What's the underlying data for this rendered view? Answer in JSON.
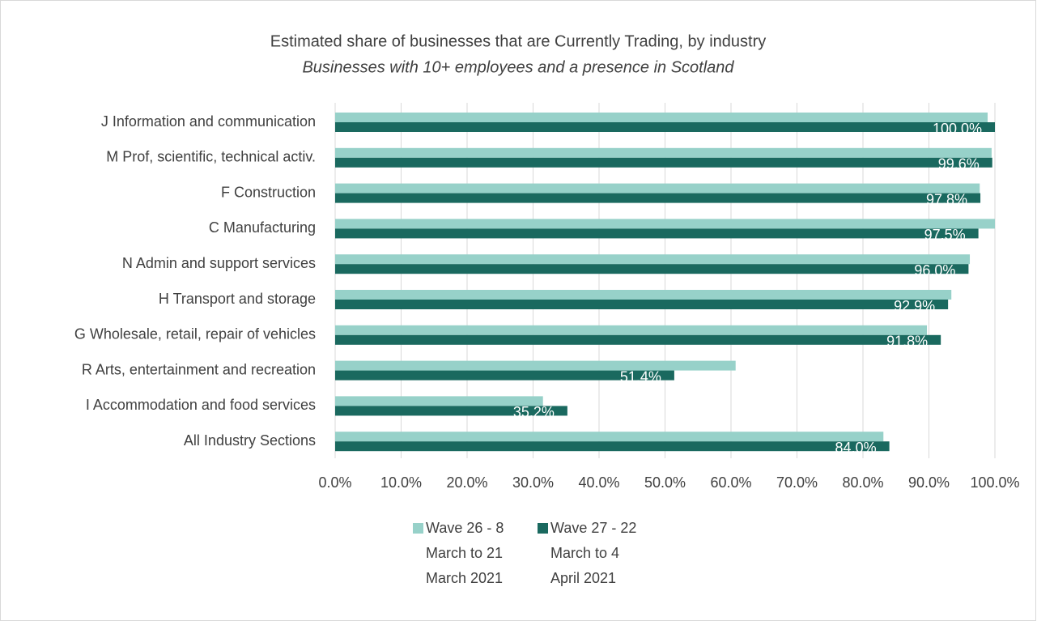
{
  "chart_data": {
    "type": "hbar",
    "title": "Estimated share of businesses that are Currently Trading, by industry",
    "subtitle": "Businesses with 10+ employees and a presence in Scotland",
    "categories": [
      "J Information and communication",
      "M Prof, scientific, technical activ.",
      "F Construction",
      "C Manufacturing",
      "N Admin and support services",
      "H Transport and storage",
      "G Wholesale, retail, repair of vehicles",
      "R Arts, entertainment and recreation",
      "I Accommodation and food services",
      "All Industry Sections"
    ],
    "series": [
      {
        "name": "Wave 26 - 8 March to 21 March 2021",
        "color": "#97d1c9",
        "values": [
          98.9,
          99.5,
          97.7,
          100,
          96.2,
          93.4,
          89.7,
          60.7,
          31.5,
          83.1
        ]
      },
      {
        "name": "Wave 27 - 22 March to 4 April 2021",
        "color": "#1a695f",
        "values": [
          100,
          99.6,
          97.8,
          97.5,
          96.0,
          92.9,
          91.8,
          51.4,
          35.2,
          84.0
        ],
        "value_labels": [
          "100.0%",
          "99.6%",
          "97.8%",
          "97.5%",
          "96.0%",
          "92.9%",
          "91.8%",
          "51.4%",
          "35.2%",
          "84.0%"
        ]
      }
    ],
    "xlim": [
      0,
      100
    ],
    "xticks": [
      {
        "value": 0,
        "label": "0.0%"
      },
      {
        "value": 10,
        "label": "10.0%"
      },
      {
        "value": 20,
        "label": "20.0%"
      },
      {
        "value": 30,
        "label": "30.0%"
      },
      {
        "value": 40,
        "label": "40.0%"
      },
      {
        "value": 50,
        "label": "50.0%"
      },
      {
        "value": 60,
        "label": "60.0%"
      },
      {
        "value": 70,
        "label": "70.0%"
      },
      {
        "value": 80,
        "label": "80.0%"
      },
      {
        "value": 90,
        "label": "90.0%"
      },
      {
        "value": 100,
        "label": "100.0%"
      }
    ],
    "grid": true,
    "legend": "bottom"
  }
}
